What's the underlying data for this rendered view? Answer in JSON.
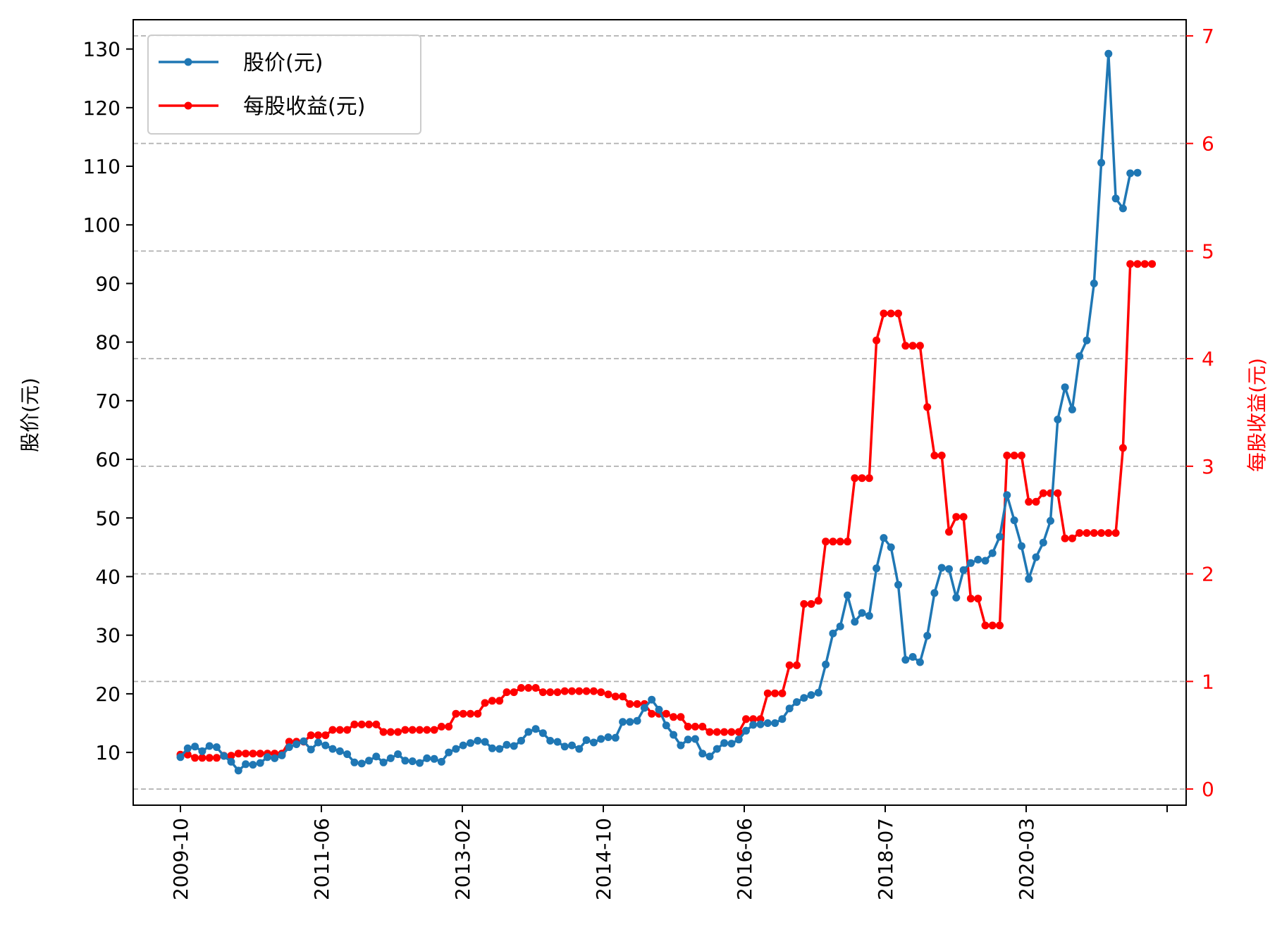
{
  "colors": {
    "price": "#1f77b4",
    "eps": "#ff0000",
    "grid": "#b0b0b0",
    "axis": "#000000"
  },
  "chart_data": {
    "type": "line",
    "ylabel_left": "股价(元)",
    "ylabel_right": "每股收益(元)",
    "x_tick_labels": [
      "2009-10",
      "2011-06",
      "2013-02",
      "2014-10",
      "2016-06",
      "2018-07",
      "2020-03"
    ],
    "ylim_left": [
      1,
      135
    ],
    "ylim_right": [
      -0.15,
      7.15
    ],
    "yticks_left": [
      10,
      20,
      30,
      40,
      50,
      60,
      70,
      80,
      90,
      100,
      110,
      120,
      130
    ],
    "yticks_right": [
      0,
      1,
      2,
      3,
      4,
      5,
      6,
      7
    ],
    "grid": "horizontal dashed (right axis)",
    "legend_position": "top-left",
    "series": [
      {
        "name": "股价(元)",
        "axis": "left",
        "color": "#1f77b4",
        "values": [
          9.2,
          10.7,
          11.0,
          10.2,
          11.1,
          10.9,
          9.4,
          8.4,
          6.9,
          8.0,
          7.9,
          8.2,
          9.2,
          9.0,
          9.5,
          10.9,
          11.4,
          11.9,
          10.5,
          11.7,
          11.2,
          10.6,
          10.2,
          9.7,
          8.3,
          8.1,
          8.6,
          9.3,
          8.3,
          9.0,
          9.7,
          8.6,
          8.5,
          8.2,
          9.0,
          8.9,
          8.4,
          10.0,
          10.6,
          11.2,
          11.6,
          12.0,
          11.8,
          10.7,
          10.6,
          11.3,
          11.1,
          12.0,
          13.5,
          14.0,
          13.3,
          12.0,
          11.8,
          11.0,
          11.2,
          10.6,
          12.1,
          11.7,
          12.3,
          12.6,
          12.5,
          15.2,
          15.2,
          15.4,
          17.6,
          19.0,
          17.3,
          14.6,
          13.0,
          11.2,
          12.2,
          12.3,
          9.8,
          9.3,
          10.6,
          11.6,
          11.5,
          12.2,
          13.7,
          14.7,
          14.8,
          15.0,
          15.0,
          15.7,
          17.5,
          18.6,
          19.3,
          19.8,
          20.2,
          25.0,
          30.3,
          31.5,
          36.8,
          32.3,
          33.8,
          33.3,
          41.4,
          46.6,
          45.0,
          38.6,
          25.8,
          26.3,
          25.4,
          29.9,
          37.2,
          41.5,
          41.3,
          36.4,
          41.1,
          42.3,
          42.9,
          42.7,
          44.0,
          46.8,
          53.9,
          49.6,
          45.2,
          39.6,
          43.3,
          45.8,
          49.5,
          66.8,
          72.3,
          68.5,
          77.6,
          80.3,
          90.0,
          110.6,
          129.2,
          104.5,
          102.8,
          108.8,
          108.9
        ]
      },
      {
        "name": "每股收益(元)",
        "axis": "right",
        "color": "#ff0000",
        "values": [
          0.32,
          0.32,
          0.29,
          0.29,
          0.29,
          0.29,
          0.31,
          0.31,
          0.33,
          0.33,
          0.33,
          0.33,
          0.33,
          0.33,
          0.33,
          0.44,
          0.44,
          0.44,
          0.5,
          0.5,
          0.5,
          0.55,
          0.55,
          0.55,
          0.6,
          0.6,
          0.6,
          0.6,
          0.53,
          0.53,
          0.53,
          0.55,
          0.55,
          0.55,
          0.55,
          0.55,
          0.58,
          0.58,
          0.7,
          0.7,
          0.7,
          0.7,
          0.8,
          0.82,
          0.82,
          0.9,
          0.9,
          0.94,
          0.94,
          0.94,
          0.9,
          0.9,
          0.9,
          0.91,
          0.91,
          0.91,
          0.91,
          0.91,
          0.9,
          0.88,
          0.86,
          0.86,
          0.79,
          0.79,
          0.79,
          0.7,
          0.7,
          0.7,
          0.67,
          0.67,
          0.58,
          0.58,
          0.58,
          0.53,
          0.53,
          0.53,
          0.53,
          0.53,
          0.65,
          0.65,
          0.65,
          0.89,
          0.89,
          0.89,
          1.15,
          1.15,
          1.72,
          1.72,
          1.75,
          2.3,
          2.3,
          2.3,
          2.3,
          2.89,
          2.89,
          2.89,
          4.17,
          4.42,
          4.42,
          4.42,
          4.12,
          4.12,
          4.12,
          3.55,
          3.1,
          3.1,
          2.39,
          2.53,
          2.53,
          1.77,
          1.77,
          1.52,
          1.52,
          1.52,
          3.1,
          3.1,
          3.1,
          2.67,
          2.67,
          2.75,
          2.75,
          2.75,
          2.33,
          2.33,
          2.38,
          2.38,
          2.38,
          2.38,
          2.38,
          2.38,
          3.17,
          4.88,
          4.88,
          4.88,
          4.88
        ]
      }
    ]
  }
}
